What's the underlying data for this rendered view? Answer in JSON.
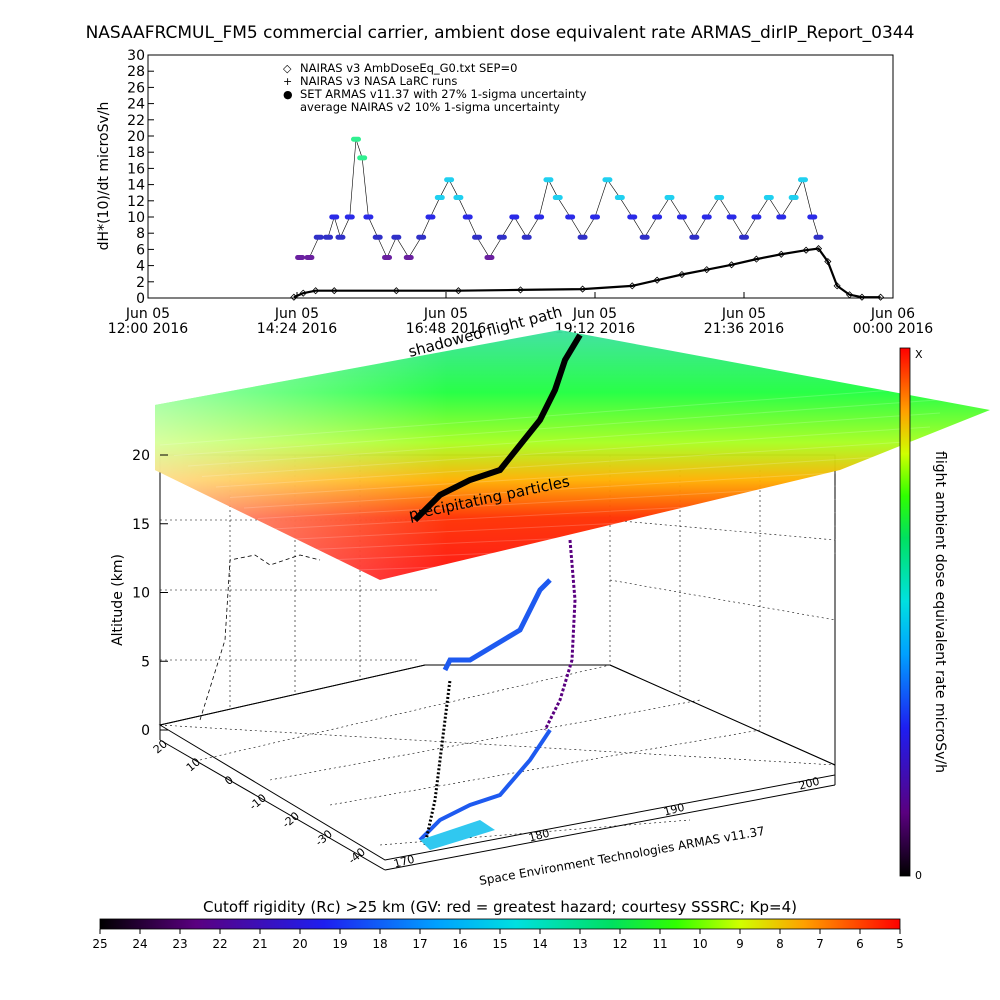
{
  "title": "NASAAFRCMUL_FM5 commercial carrier, ambient dose equivalent rate ARMAS_dirIP_Report_0344",
  "chart_data": [
    {
      "type": "scatter",
      "ylabel": "dH*(10)/dt microSv/h",
      "ylim": [
        0,
        30
      ],
      "yticks": [
        0,
        2,
        4,
        6,
        8,
        10,
        12,
        14,
        16,
        18,
        20,
        22,
        24,
        26,
        28,
        30
      ],
      "xlim_hours": [
        12.0,
        24.0
      ],
      "xticks": [
        {
          "hour": 12.0,
          "line1": "Jun 05",
          "line2": "12:00 2016"
        },
        {
          "hour": 14.4,
          "line1": "Jun 05",
          "line2": "14:24 2016"
        },
        {
          "hour": 16.8,
          "line1": "Jun 05",
          "line2": "16:48 2016"
        },
        {
          "hour": 19.2,
          "line1": "Jun 05",
          "line2": "19:12 2016"
        },
        {
          "hour": 21.6,
          "line1": "Jun 05",
          "line2": "21:36 2016"
        },
        {
          "hour": 24.0,
          "line1": "Jun 06",
          "line2": "00:00 2016"
        }
      ],
      "legend": [
        {
          "symbol": "◇",
          "label": "NAIRAS v3 AmbDoseEq_G0.txt SEP=0",
          "color": "#000000"
        },
        {
          "symbol": "+",
          "label": "NAIRAS v3 NASA LaRC runs",
          "color": "#000000"
        },
        {
          "symbol": "●",
          "label": "SET ARMAS v11.37 with 27% 1-sigma uncertainty",
          "color": "#2a2ae8"
        },
        {
          "symbol": "",
          "label": "average NAIRAS v2 10% 1-sigma uncertainty",
          "color": "#000000"
        }
      ],
      "legend_position": "top-left",
      "series": [
        {
          "name": "NAIRAS v3 AmbDoseEq_G0.txt SEP=0",
          "x_hours": [
            14.35,
            14.5,
            14.7,
            15.0,
            16.0,
            17.0,
            18.0,
            19.0,
            19.8,
            20.2,
            20.6,
            21.0,
            21.4,
            21.8,
            22.2,
            22.6,
            22.8,
            22.95,
            23.1,
            23.3,
            23.5,
            23.8
          ],
          "y": [
            0.1,
            0.6,
            0.9,
            0.9,
            0.9,
            0.9,
            1.0,
            1.1,
            1.5,
            2.2,
            2.9,
            3.5,
            4.1,
            4.8,
            5.4,
            5.9,
            6.1,
            4.5,
            1.5,
            0.4,
            0.1,
            0.1
          ]
        },
        {
          "name": "SET ARMAS v11.37 with 27% 1-sigma uncertainty",
          "x_hours": [
            14.45,
            14.6,
            14.75,
            14.9,
            15.0,
            15.1,
            15.25,
            15.35,
            15.45,
            15.55,
            15.7,
            15.85,
            16.0,
            16.2,
            16.4,
            16.55,
            16.7,
            16.85,
            17.0,
            17.15,
            17.3,
            17.5,
            17.7,
            17.9,
            18.1,
            18.3,
            18.45,
            18.6,
            18.8,
            19.0,
            19.2,
            19.4,
            19.6,
            19.8,
            20.0,
            20.2,
            20.4,
            20.6,
            20.8,
            21.0,
            21.2,
            21.4,
            21.6,
            21.8,
            22.0,
            22.2,
            22.4,
            22.55,
            22.7,
            22.8
          ],
          "y": [
            5.0,
            5.0,
            7.5,
            7.5,
            10.0,
            7.5,
            10.0,
            19.6,
            17.3,
            10.0,
            7.5,
            5.0,
            7.5,
            5.0,
            7.5,
            10.0,
            12.4,
            14.6,
            12.4,
            10.0,
            7.5,
            5.0,
            7.5,
            10.0,
            7.5,
            10.0,
            14.6,
            12.4,
            10.0,
            7.5,
            10.0,
            14.6,
            12.4,
            10.0,
            7.5,
            10.0,
            12.4,
            10.0,
            7.5,
            10.0,
            12.4,
            10.0,
            7.5,
            10.0,
            12.4,
            10.0,
            12.4,
            14.6,
            10.0,
            7.5
          ]
        }
      ]
    },
    {
      "type": "scatter3d",
      "zlabel": "Altitude (km)",
      "zlim": [
        0,
        20
      ],
      "zticks": [
        0,
        5,
        10,
        15,
        20
      ],
      "lat_ticks": [
        20,
        10,
        0,
        -10,
        -20,
        -30,
        -40
      ],
      "lon_ticks": [
        170,
        180,
        190,
        200
      ],
      "colorbar_label": "flight ambient dose equivalent rate microSv/h",
      "colorbar_top": "X",
      "colorbar_bottom": "0",
      "annotations": [
        "shadowed flight path",
        "precipitating particles"
      ],
      "credit": "Space Environment Technologies ARMAS v11.37"
    }
  ],
  "bottom_colorbar": {
    "label": "Cutoff rigidity (Rc) >25 km (GV: red = greatest hazard; courtesy SSSRC; Kp=4)",
    "ticks": [
      "25",
      "24",
      "23",
      "22",
      "21",
      "20",
      "19",
      "18",
      "17",
      "16",
      "15",
      "14",
      "13",
      "12",
      "11",
      "10",
      "9",
      "8",
      "7",
      "6",
      "5"
    ]
  },
  "colors": {
    "armas": "#2a2ae8",
    "nairas": "#000000",
    "hazard_high": "#ff0000",
    "hazard_low": "#40e0d0"
  }
}
